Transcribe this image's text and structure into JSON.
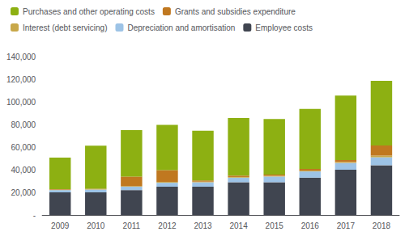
{
  "chart_data": {
    "type": "bar",
    "stacked": true,
    "categories": [
      "2009",
      "2010",
      "2011",
      "2012",
      "2013",
      "2014",
      "2015",
      "2016",
      "2017",
      "2018"
    ],
    "series": [
      {
        "name": "Employee costs",
        "color": "#404550",
        "values": [
          20000,
          20000,
          22000,
          25000,
          25000,
          29000,
          29000,
          33000,
          40000,
          44000
        ]
      },
      {
        "name": "Depreciation and amortisation",
        "color": "#9dc3e6",
        "values": [
          2000,
          2500,
          3000,
          3500,
          4000,
          4000,
          5000,
          5500,
          6000,
          7000
        ]
      },
      {
        "name": "Interest (debt servicing)",
        "color": "#c8a84a",
        "values": [
          300,
          300,
          500,
          700,
          500,
          600,
          600,
          700,
          800,
          1500
        ]
      },
      {
        "name": "Grants and subsidies expenditure",
        "color": "#c07820",
        "values": [
          500,
          500,
          8500,
          10500,
          1000,
          1200,
          1200,
          1500,
          1800,
          9000
        ]
      },
      {
        "name": "Purchases and other operating costs",
        "color": "#8db012",
        "values": [
          28000,
          38000,
          41000,
          40000,
          44000,
          51000,
          49000,
          53000,
          57000,
          57000
        ]
      }
    ],
    "ylim": [
      0,
      140000
    ],
    "yticks": [
      {
        "value": 0,
        "label": "-"
      },
      {
        "value": 20000,
        "label": "20,000"
      },
      {
        "value": 40000,
        "label": "40,000"
      },
      {
        "value": 60000,
        "label": "60,000"
      },
      {
        "value": 80000,
        "label": "80,000"
      },
      {
        "value": 100000,
        "label": "100,000"
      },
      {
        "value": 120000,
        "label": "120,000"
      },
      {
        "value": 140000,
        "label": "140,000"
      }
    ],
    "grid": false,
    "legend": "upper left"
  }
}
